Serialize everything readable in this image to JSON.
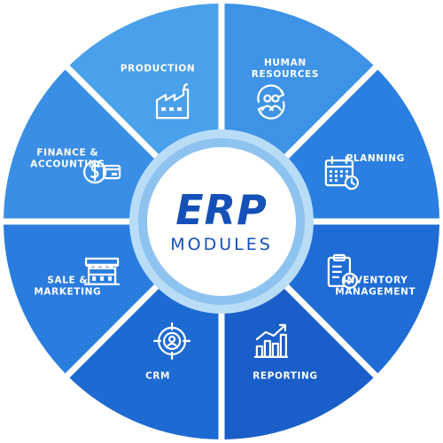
{
  "center": {
    "title": "ERP",
    "subtitle": "MODULES"
  },
  "modules": [
    {
      "lines": [
        "HUMAN",
        "RESOURCES"
      ],
      "icon": "human-resources-icon",
      "color": "#3f93e6"
    },
    {
      "lines": [
        "PLANNING"
      ],
      "icon": "calendar-icon",
      "color": "#2a7fe0"
    },
    {
      "lines": [
        "INVENTORY",
        "MANAGEMENT"
      ],
      "icon": "clipboard-check-icon",
      "color": "#1f6cd6"
    },
    {
      "lines": [
        "REPORTING"
      ],
      "icon": "bar-chart-icon",
      "color": "#1a5ec9"
    },
    {
      "lines": [
        "CRM"
      ],
      "icon": "target-customer-icon",
      "color": "#1e6ad3"
    },
    {
      "lines": [
        "SALE &",
        "MARKETING"
      ],
      "icon": "storefront-icon",
      "color": "#2a7ddf"
    },
    {
      "lines": [
        "FINANCE &",
        "ACCOUNTING"
      ],
      "icon": "money-card-icon",
      "color": "#3a8ee5"
    },
    {
      "lines": [
        "PRODUCTION"
      ],
      "icon": "factory-icon",
      "color": "#4aa0ea"
    }
  ],
  "colors": {
    "ring": "#b9dcf7",
    "ring_inner": "#8fc3ef",
    "center_text": "#1450b8",
    "separator": "#ffffff"
  }
}
